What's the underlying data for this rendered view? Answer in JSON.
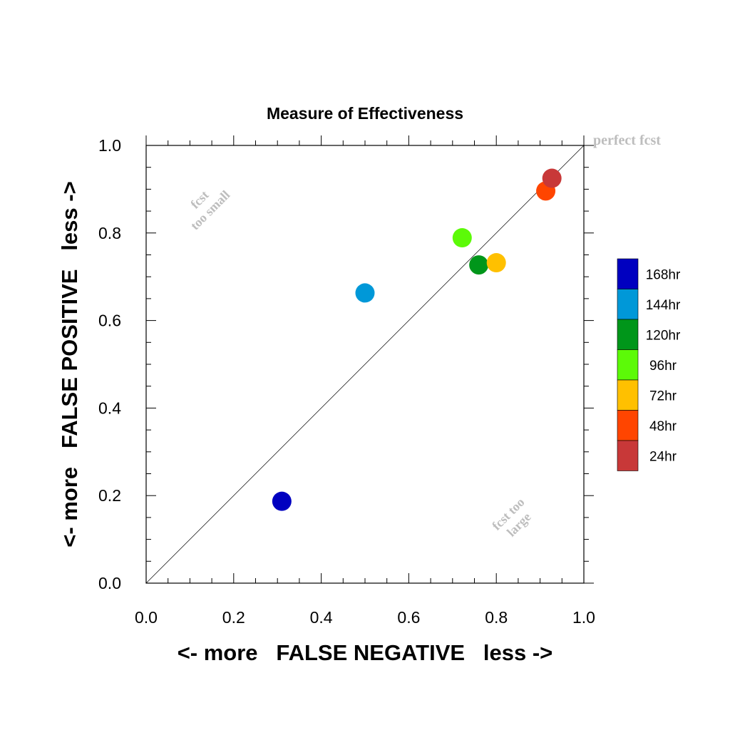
{
  "chart_data": {
    "type": "scatter",
    "title": "Measure of Effectiveness",
    "xlabel": "<- more   FALSE NEGATIVE   less ->",
    "ylabel": "<- more   FALSE POSITIVE   less ->",
    "xlim": [
      0.0,
      1.0
    ],
    "ylim": [
      0.0,
      1.0
    ],
    "xticks": [
      "0.0",
      "0.2",
      "0.4",
      "0.6",
      "0.8",
      "1.0"
    ],
    "yticks": [
      "0.0",
      "0.2",
      "0.4",
      "0.6",
      "0.8",
      "1.0"
    ],
    "grid": false,
    "legend_position": "right",
    "reference_line": {
      "from": [
        0,
        0
      ],
      "to": [
        1,
        1
      ]
    },
    "annotations": {
      "perfect": "perfect fcst",
      "too_small_line1": "fcst",
      "too_small_line2": "too small",
      "too_large_line1": "fcst too",
      "too_large_line2": "large"
    },
    "series": [
      {
        "name": "168hr",
        "color": "#0000c0",
        "x": 0.31,
        "y": 0.187
      },
      {
        "name": "144hr",
        "color": "#0098d8",
        "x": 0.5,
        "y": 0.663
      },
      {
        "name": "120hr",
        "color": "#00961a",
        "x": 0.76,
        "y": 0.727
      },
      {
        "name": "96hr",
        "color": "#5cfa08",
        "x": 0.722,
        "y": 0.789
      },
      {
        "name": "72hr",
        "color": "#ffc000",
        "x": 0.8,
        "y": 0.732
      },
      {
        "name": "48hr",
        "color": "#ff4500",
        "x": 0.913,
        "y": 0.896
      },
      {
        "name": "24hr",
        "color": "#c83838",
        "x": 0.927,
        "y": 0.925
      }
    ]
  }
}
